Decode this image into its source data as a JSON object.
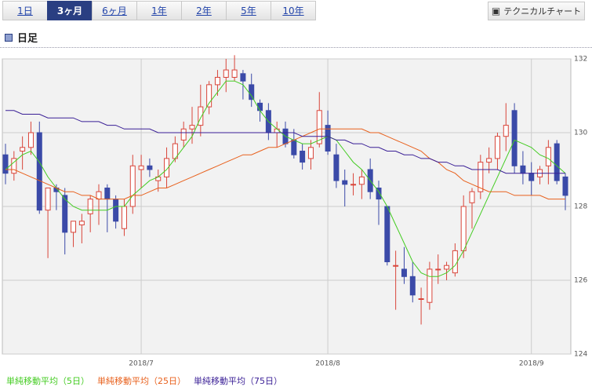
{
  "tabs": [
    "1日",
    "3ヶ月",
    "6ヶ月",
    "1年",
    "2年",
    "5年",
    "10年"
  ],
  "active_tab": 1,
  "button": "テクニカルチャート",
  "section_title": "日足",
  "chart_data": {
    "type": "candlestick",
    "categories": [
      null,
      null,
      null,
      null,
      null,
      null,
      null,
      null,
      null,
      null,
      null,
      null,
      null,
      null,
      null,
      null,
      "2018/7",
      null,
      null,
      null,
      null,
      null,
      null,
      null,
      null,
      null,
      null,
      null,
      null,
      null,
      null,
      null,
      null,
      null,
      null,
      null,
      null,
      null,
      "2018/8",
      null,
      null,
      null,
      null,
      null,
      null,
      null,
      null,
      null,
      null,
      null,
      null,
      null,
      null,
      null,
      null,
      null,
      null,
      null,
      null,
      null,
      null,
      null,
      "2018/9",
      null,
      null,
      null,
      null
    ],
    "open": [
      129.4,
      128.9,
      129.5,
      129.6,
      130.0,
      127.9,
      128.5,
      128.3,
      127.3,
      127.5,
      127.8,
      128.2,
      128.5,
      128.2,
      127.4,
      128.0,
      129.0,
      129.1,
      128.7,
      128.8,
      129.3,
      129.8,
      130.1,
      130.2,
      130.7,
      131.3,
      131.5,
      131.5,
      131.6,
      131.3,
      130.8,
      130.6,
      130.0,
      130.1,
      129.8,
      129.5,
      129.3,
      129.7,
      130.2,
      129.4,
      128.7,
      128.6,
      128.6,
      129.0,
      128.5,
      128.0,
      126.4,
      126.3,
      126.1,
      125.5,
      125.4,
      126.3,
      126.3,
      126.2,
      126.8,
      128.1,
      128.4,
      129.2,
      129.3,
      129.9,
      130.6,
      129.1,
      128.9,
      128.8,
      129.1,
      129.7,
      128.8
    ],
    "high": [
      129.7,
      129.5,
      129.9,
      130.3,
      130.3,
      128.5,
      128.6,
      128.5,
      127.6,
      127.8,
      128.3,
      128.6,
      128.6,
      128.3,
      128.2,
      129.4,
      129.4,
      129.3,
      129.0,
      129.6,
      129.9,
      130.3,
      130.7,
      131.3,
      131.4,
      131.7,
      132.0,
      132.1,
      131.7,
      131.6,
      130.9,
      130.8,
      130.3,
      130.3,
      130.1,
      129.7,
      129.8,
      131.1,
      130.6,
      129.7,
      129.0,
      128.9,
      129.0,
      129.3,
      128.7,
      128.0,
      126.8,
      126.9,
      126.5,
      125.8,
      126.5,
      126.7,
      126.5,
      127.0,
      128.3,
      128.5,
      129.4,
      129.6,
      130.0,
      130.8,
      130.8,
      129.5,
      129.2,
      129.1,
      129.8,
      129.8,
      128.9
    ],
    "low": [
      128.6,
      128.7,
      129.0,
      129.4,
      127.8,
      126.6,
      127.9,
      126.7,
      126.9,
      127.0,
      127.3,
      127.5,
      127.3,
      127.4,
      127.2,
      127.8,
      128.5,
      128.8,
      128.4,
      128.5,
      129.2,
      129.6,
      129.7,
      129.9,
      130.5,
      131.0,
      131.1,
      131.4,
      130.9,
      130.7,
      130.3,
      129.8,
      129.6,
      129.6,
      129.3,
      129.0,
      129.0,
      129.6,
      129.4,
      128.5,
      128.0,
      128.3,
      128.2,
      128.2,
      127.5,
      126.4,
      125.2,
      125.9,
      125.4,
      124.8,
      125.2,
      125.9,
      126.0,
      126.1,
      126.6,
      127.4,
      128.2,
      128.9,
      129.0,
      129.5,
      128.9,
      128.6,
      128.3,
      128.6,
      128.6,
      128.6,
      127.9
    ],
    "close": [
      128.9,
      129.3,
      129.6,
      130.0,
      127.9,
      128.5,
      128.4,
      127.3,
      127.6,
      127.6,
      128.2,
      128.4,
      128.2,
      127.6,
      128.0,
      129.1,
      129.1,
      129.0,
      128.8,
      129.3,
      129.7,
      130.1,
      130.2,
      130.7,
      131.3,
      131.5,
      131.7,
      131.7,
      131.4,
      130.9,
      130.6,
      130.0,
      130.1,
      129.7,
      129.4,
      129.2,
      129.6,
      130.6,
      129.5,
      128.7,
      128.6,
      128.6,
      128.8,
      128.4,
      128.2,
      126.5,
      126.4,
      126.1,
      125.6,
      125.5,
      126.3,
      126.3,
      126.4,
      126.8,
      128.0,
      128.4,
      129.2,
      129.3,
      129.9,
      130.2,
      129.1,
      128.9,
      128.7,
      129.0,
      129.6,
      128.7,
      128.3
    ],
    "up_color": "#d9453a",
    "down_color": "#3b4aa8",
    "series": [
      {
        "name": "単純移動平均（5日）",
        "color": "#44cc22",
        "values": [
          129.0,
          129.2,
          129.4,
          129.5,
          129.2,
          128.8,
          128.5,
          128.2,
          128.0,
          127.9,
          127.9,
          127.9,
          127.9,
          128.0,
          128.0,
          128.3,
          128.5,
          128.7,
          128.8,
          129.0,
          129.3,
          129.6,
          129.9,
          130.4,
          130.8,
          131.1,
          131.4,
          131.4,
          131.3,
          131.0,
          130.6,
          130.3,
          130.1,
          129.9,
          129.8,
          129.7,
          129.7,
          129.8,
          129.9,
          129.8,
          129.5,
          129.2,
          129.0,
          128.7,
          128.4,
          128.0,
          127.5,
          127.0,
          126.5,
          126.2,
          126.1,
          126.1,
          126.2,
          126.4,
          126.8,
          127.3,
          127.8,
          128.3,
          128.8,
          129.3,
          129.8,
          129.7,
          129.6,
          129.4,
          129.3,
          129.1,
          128.9
        ]
      },
      {
        "name": "単純移動平均（25日）",
        "color": "#e8601c",
        "values": [
          129.0,
          129.0,
          128.9,
          128.8,
          128.7,
          128.6,
          128.5,
          128.4,
          128.4,
          128.3,
          128.3,
          128.2,
          128.2,
          128.2,
          128.2,
          128.3,
          128.3,
          128.4,
          128.5,
          128.5,
          128.6,
          128.7,
          128.8,
          128.9,
          129.0,
          129.1,
          129.2,
          129.3,
          129.4,
          129.4,
          129.5,
          129.6,
          129.6,
          129.7,
          129.8,
          129.9,
          130.0,
          130.1,
          130.1,
          130.1,
          130.1,
          130.1,
          130.1,
          130.0,
          130.0,
          129.9,
          129.8,
          129.7,
          129.6,
          129.5,
          129.3,
          129.2,
          129.0,
          128.9,
          128.7,
          128.6,
          128.5,
          128.4,
          128.4,
          128.4,
          128.3,
          128.3,
          128.3,
          128.3,
          128.2,
          128.2,
          128.2
        ]
      },
      {
        "name": "単純移動平均（75日）",
        "color": "#3a1f96",
        "values": [
          130.6,
          130.6,
          130.5,
          130.5,
          130.5,
          130.4,
          130.4,
          130.4,
          130.4,
          130.3,
          130.3,
          130.3,
          130.2,
          130.2,
          130.1,
          130.1,
          130.1,
          130.1,
          130.0,
          130.0,
          130.0,
          130.0,
          130.0,
          130.0,
          130.0,
          130.0,
          130.0,
          130.0,
          130.0,
          130.0,
          130.0,
          130.0,
          130.0,
          130.0,
          130.0,
          129.9,
          129.9,
          129.9,
          129.9,
          129.8,
          129.8,
          129.7,
          129.7,
          129.6,
          129.6,
          129.5,
          129.5,
          129.4,
          129.4,
          129.3,
          129.3,
          129.2,
          129.2,
          129.1,
          129.1,
          129.0,
          129.0,
          129.0,
          129.0,
          128.9,
          128.9,
          128.9,
          128.9,
          128.9,
          128.9,
          128.9,
          128.9
        ]
      }
    ],
    "ylim": [
      124,
      132
    ],
    "yticks": [
      124,
      126,
      128,
      130,
      132
    ],
    "grid": true
  }
}
